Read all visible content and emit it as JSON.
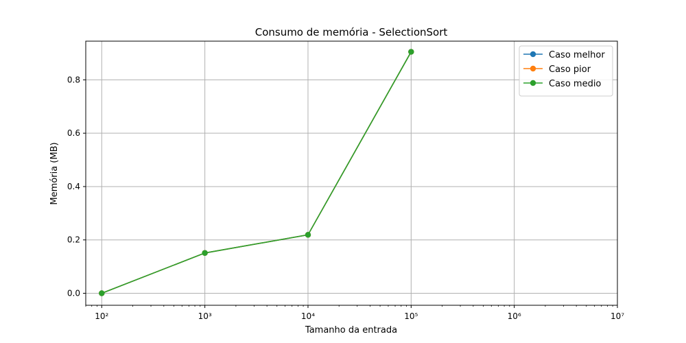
{
  "chart_data": {
    "type": "line",
    "title": "Consumo de memória - SelectionSort",
    "xlabel": "Tamanho da entrada",
    "ylabel": "Memória (MB)",
    "xscale": "log",
    "xlim": [
      70,
      10000000
    ],
    "ylim": [
      -0.045,
      0.945
    ],
    "x": [
      100,
      1000,
      10000,
      100000
    ],
    "x_ticks": [
      {
        "value": 100,
        "label": "10²"
      },
      {
        "value": 1000,
        "label": "10³"
      },
      {
        "value": 10000,
        "label": "10⁴"
      },
      {
        "value": 100000,
        "label": "10⁵"
      },
      {
        "value": 1000000,
        "label": "10⁶"
      },
      {
        "value": 10000000,
        "label": "10⁷"
      }
    ],
    "y_ticks": [
      {
        "value": 0.0,
        "label": "0.0"
      },
      {
        "value": 0.2,
        "label": "0.2"
      },
      {
        "value": 0.4,
        "label": "0.4"
      },
      {
        "value": 0.6,
        "label": "0.6"
      },
      {
        "value": 0.8,
        "label": "0.8"
      }
    ],
    "grid": true,
    "legend_position": "top-right",
    "series": [
      {
        "name": "Caso melhor",
        "color": "#1f77b4",
        "marker": "circle",
        "values": [
          0.0,
          0.151,
          0.219,
          0.905
        ]
      },
      {
        "name": "Caso pior",
        "color": "#ff7f0e",
        "marker": "circle",
        "values": [
          0.0,
          0.151,
          0.219,
          0.905
        ]
      },
      {
        "name": "Caso medio",
        "color": "#2ca02c",
        "marker": "circle",
        "values": [
          0.0,
          0.151,
          0.219,
          0.905
        ]
      }
    ]
  }
}
